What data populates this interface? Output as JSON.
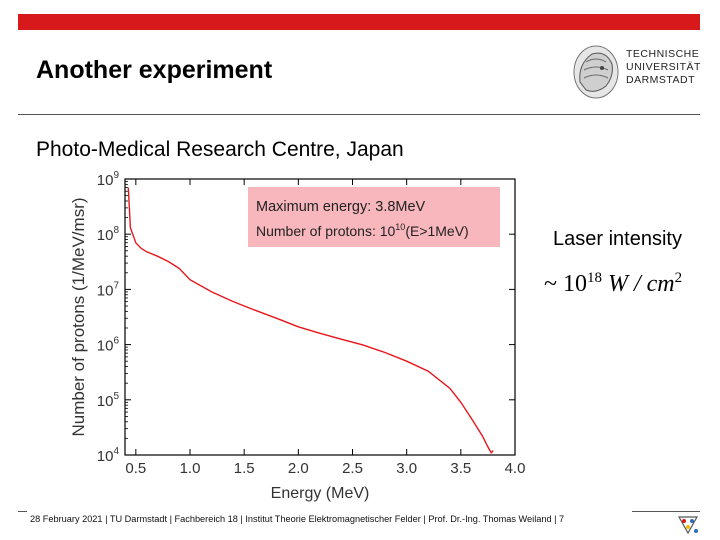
{
  "slide": {
    "title": "Another experiment",
    "subtitle": "Photo-Medical Research Centre, Japan",
    "laser_label": "Laser intensity",
    "formula": {
      "prefix": "~ 10",
      "exponent": "18",
      "unit_main": " W / cm",
      "unit_exponent": "2"
    },
    "logo_lines": [
      "TECHNISCHE",
      "UNIVERSITÄT",
      "DARMSTADT"
    ],
    "footer": "28 February 2021 | TU Darmstadt | Fachbereich 18 | Institut Theorie Elektromagnetischer Felder | Prof. Dr.-Ing. Thomas Weiland | 7"
  },
  "colors": {
    "accent_red": "#d7191c",
    "curve": "#e8161b",
    "annotation_bg": "#f7b7bd"
  },
  "chart_data": {
    "type": "line",
    "xlabel": "Energy  (MeV)",
    "ylabel": "Number  of  protons  (1/MeV/msr)",
    "xlim": [
      0.4,
      4.0
    ],
    "ylim": [
      10000,
      1000000000
    ],
    "yscale": "log",
    "x_ticks": [
      "0.5",
      "1.0",
      "1.5",
      "2.0",
      "2.5",
      "3.0",
      "3.5",
      "4.0"
    ],
    "x_tick_values": [
      0.5,
      1.0,
      1.5,
      2.0,
      2.5,
      3.0,
      3.5,
      4.0
    ],
    "y_ticks": [
      {
        "base": "10",
        "exp": "4",
        "value": 10000
      },
      {
        "base": "10",
        "exp": "5",
        "value": 100000
      },
      {
        "base": "10",
        "exp": "6",
        "value": 1000000
      },
      {
        "base": "10",
        "exp": "7",
        "value": 10000000
      },
      {
        "base": "10",
        "exp": "8",
        "value": 100000000
      },
      {
        "base": "10",
        "exp": "9",
        "value": 1000000000
      }
    ],
    "annotation": {
      "line1": "Maximum energy: 3.8MeV",
      "line2_prefix": "Number  of  protons: 10",
      "line2_exp": "10",
      "line2_suffix": "(E>1MeV)"
    },
    "series": [
      {
        "x": [
          0.43,
          0.45,
          0.48,
          0.5,
          0.55,
          0.6,
          0.7,
          0.8,
          0.9,
          1.0,
          1.2,
          1.4,
          1.6,
          1.8,
          2.0,
          2.2,
          2.4,
          2.6,
          2.8,
          3.0,
          3.2,
          3.4,
          3.5,
          3.6,
          3.7,
          3.75,
          3.78,
          3.8
        ],
        "y": [
          700000000,
          130000000,
          90000000,
          70000000,
          55000000,
          48000000,
          40000000,
          32000000,
          24000000,
          15000000,
          9000000,
          6000000,
          4200000,
          3000000,
          2100000,
          1600000,
          1250000,
          980000,
          720000,
          500000,
          330000,
          160000,
          90000,
          45000,
          22000,
          14000,
          11000,
          12000
        ]
      }
    ]
  }
}
